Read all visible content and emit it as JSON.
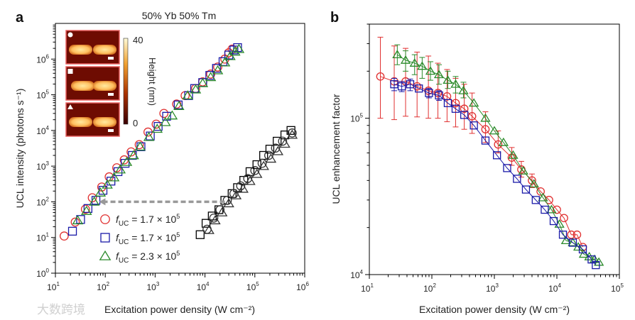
{
  "chart_data": [
    {
      "panel": "a",
      "type": "scatter",
      "title": "50% Yb  50% Tm",
      "xlabel": "Excitation power density (W cm⁻²)",
      "ylabel": "UCL intensity (photons s⁻¹)",
      "xscale": "log",
      "yscale": "log",
      "xlim": [
        10,
        1000000
      ],
      "ylim": [
        1,
        10000000
      ],
      "x_ticks": [
        {
          "base": "10",
          "exp": "1"
        },
        {
          "base": "10",
          "exp": "2"
        },
        {
          "base": "10",
          "exp": "3"
        },
        {
          "base": "10",
          "exp": "4"
        },
        {
          "base": "10",
          "exp": "5"
        },
        {
          "base": "10",
          "exp": "6"
        }
      ],
      "y_ticks": [
        {
          "base": "10",
          "exp": "0"
        },
        {
          "base": "10",
          "exp": "1"
        },
        {
          "base": "10",
          "exp": "2"
        },
        {
          "base": "10",
          "exp": "3"
        },
        {
          "base": "10",
          "exp": "4"
        },
        {
          "base": "10",
          "exp": "5"
        },
        {
          "base": "10",
          "exp": "6"
        }
      ],
      "legend_position": "bottom-center",
      "legend": [
        {
          "marker": "circle",
          "color": "#e03030",
          "f": "f",
          "sub": "UC",
          "value": " = 1.7 × 10",
          "exp": "5"
        },
        {
          "marker": "square",
          "color": "#1a1aa8",
          "f": "f",
          "sub": "UC",
          "value": " = 1.7 × 10",
          "exp": "5"
        },
        {
          "marker": "triangle",
          "color": "#2a8a2a",
          "f": "f",
          "sub": "UC",
          "value": " = 2.3 × 10",
          "exp": "5"
        }
      ],
      "annotation": {
        "type": "arrow",
        "from": [
          25000,
          100
        ],
        "to": [
          75,
          100
        ],
        "style": "dashed gray"
      },
      "inset": {
        "colorbar_label": "Height (nm)",
        "colorbar_max": "40",
        "colorbar_min": "0",
        "panels": [
          "circle",
          "square",
          "triangle"
        ]
      },
      "series": [
        {
          "name": "circle (enhanced)",
          "marker": "circle",
          "color": "#e03030",
          "x": [
            15,
            25,
            40,
            55,
            85,
            120,
            170,
            240,
            330,
            480,
            720,
            1050,
            1500,
            2700,
            4000,
            6500,
            9000,
            13000,
            18000,
            25000,
            30000,
            35000
          ],
          "y": [
            11,
            27,
            62,
            130,
            260,
            500,
            900,
            1500,
            2500,
            4000,
            9000,
            15000,
            30000,
            55000,
            95000,
            150000,
            230000,
            380000,
            600000,
            1000000,
            1500000,
            1900000
          ]
        },
        {
          "name": "square (enhanced)",
          "marker": "square",
          "color": "#1a1aa8",
          "x": [
            22,
            32,
            45,
            65,
            90,
            130,
            180,
            250,
            350,
            520,
            800,
            1150,
            1700,
            2900,
            4700,
            6200,
            9000,
            12500,
            17000,
            23000,
            30000,
            38000,
            45000
          ],
          "y": [
            15,
            32,
            65,
            110,
            210,
            380,
            700,
            1200,
            2000,
            3500,
            7000,
            13000,
            25000,
            52000,
            95000,
            150000,
            220000,
            350000,
            550000,
            850000,
            1300000,
            1800000,
            2100000
          ]
        },
        {
          "name": "triangle (enhanced)",
          "marker": "triangle",
          "color": "#2a8a2a",
          "x": [
            28,
            42,
            60,
            80,
            110,
            150,
            200,
            270,
            370,
            500,
            750,
            1100,
            1600,
            2200,
            3000,
            4500,
            6500,
            9000,
            13000,
            18000,
            25000,
            32000,
            40000,
            48000
          ],
          "y": [
            30,
            55,
            100,
            180,
            300,
            480,
            800,
            1300,
            2000,
            3500,
            6500,
            11000,
            17000,
            26000,
            48000,
            95000,
            140000,
            210000,
            310000,
            480000,
            800000,
            1200000,
            1600000,
            1900000
          ]
        },
        {
          "name": "square (reference)",
          "marker": "square",
          "color": "#000000",
          "x": [
            8000,
            10500,
            14000,
            19000,
            25000,
            35000,
            45000,
            60000,
            80000,
            110000,
            150000,
            200000,
            280000,
            400000,
            530000
          ],
          "y": [
            12,
            25,
            40,
            60,
            110,
            170,
            250,
            400,
            700,
            1100,
            2000,
            3000,
            5000,
            7500,
            10000
          ]
        },
        {
          "name": "circle (reference)",
          "marker": "circle",
          "color": "#333333",
          "x": [
            11000,
            15000,
            20000,
            28000,
            38000,
            52000,
            72000,
            100000,
            140000,
            190000,
            260000,
            360000,
            560000
          ],
          "y": [
            17,
            35,
            60,
            110,
            170,
            280,
            450,
            750,
            1200,
            2000,
            3200,
            5000,
            8500
          ]
        },
        {
          "name": "triangle (reference)",
          "marker": "triangle",
          "color": "#333333",
          "x": [
            12000,
            16000,
            22000,
            30000,
            42000,
            58000,
            80000,
            110000,
            150000,
            210000,
            290000,
            400000,
            560000
          ],
          "y": [
            16,
            30,
            50,
            90,
            150,
            230,
            380,
            600,
            1000,
            1600,
            2600,
            4200,
            7500
          ]
        }
      ]
    },
    {
      "panel": "b",
      "type": "line",
      "xlabel": "Excitation power density (W cm⁻²)",
      "ylabel": "UCL enhancement factor",
      "xscale": "log",
      "yscale": "log",
      "xlim": [
        10,
        100000
      ],
      "ylim": [
        10000,
        400000
      ],
      "x_ticks": [
        {
          "base": "10",
          "exp": "1"
        },
        {
          "base": "10",
          "exp": "2"
        },
        {
          "base": "10",
          "exp": "3"
        },
        {
          "base": "10",
          "exp": "4"
        },
        {
          "base": "10",
          "exp": "5"
        }
      ],
      "y_ticks": [
        {
          "base": "10",
          "exp": "4"
        },
        {
          "base": "10",
          "exp": "5"
        }
      ],
      "series": [
        {
          "name": "circle",
          "marker": "circle",
          "color": "#e03030",
          "x": [
            15,
            25,
            38,
            58,
            88,
            125,
            175,
            240,
            330,
            440,
            720,
            1150,
            1900,
            2700,
            4000,
            5500,
            7500,
            10000,
            13000,
            17000,
            21000,
            26000
          ],
          "y": [
            185000,
            172000,
            172000,
            160000,
            150000,
            145000,
            138000,
            125000,
            115000,
            103000,
            85000,
            68000,
            56000,
            47000,
            40000,
            34000,
            30000,
            26000,
            23000,
            18000,
            18000,
            15000
          ],
          "err_lo": [
            100000,
            98000,
            103000,
            102000,
            100000,
            100000,
            95000,
            88000,
            85000,
            80000,
            70000,
            60000,
            50000,
            42000,
            36000,
            null,
            null,
            null,
            null,
            null,
            null,
            null
          ],
          "err_hi": [
            330000,
            290000,
            280000,
            265000,
            250000,
            225000,
            205000,
            180000,
            165000,
            145000,
            110000,
            83000,
            65000,
            53000,
            44000,
            null,
            null,
            null,
            null,
            null,
            null,
            null
          ]
        },
        {
          "name": "triangle",
          "marker": "triangle",
          "color": "#2a8a2a",
          "x": [
            28,
            38,
            53,
            70,
            95,
            130,
            180,
            240,
            320,
            470,
            720,
            1000,
            1400,
            2000,
            2900,
            4300,
            6000,
            8200,
            11000,
            14000,
            18000,
            22000,
            27000,
            33000,
            40000,
            47000
          ],
          "y": [
            255000,
            235000,
            225000,
            215000,
            200000,
            190000,
            175000,
            165000,
            150000,
            125000,
            100000,
            83000,
            70000,
            58000,
            46000,
            38000,
            31000,
            26000,
            21000,
            16500,
            16000,
            15000,
            13500,
            13000,
            12500,
            12000
          ],
          "err_lo": [
            220000,
            200000,
            190000,
            180000,
            175000,
            165000,
            155000,
            145000,
            135000,
            null,
            null,
            null,
            null,
            null,
            null,
            null,
            null,
            null,
            null,
            null,
            null,
            null,
            null,
            null,
            null,
            null
          ],
          "err_hi": [
            295000,
            270000,
            255000,
            245000,
            230000,
            220000,
            200000,
            185000,
            170000,
            null,
            null,
            null,
            null,
            null,
            null,
            null,
            null,
            null,
            null,
            null,
            null,
            null,
            null,
            null,
            null,
            null
          ]
        },
        {
          "name": "square",
          "marker": "square",
          "color": "#1a1aa8",
          "x": [
            25,
            33,
            45,
            62,
            90,
            130,
            180,
            240,
            330,
            470,
            720,
            1100,
            1600,
            2300,
            3200,
            4600,
            6400,
            8900,
            12500,
            18000,
            26000,
            36000,
            42000
          ],
          "y": [
            165000,
            160000,
            165000,
            155000,
            145000,
            140000,
            125000,
            115000,
            105000,
            90000,
            72000,
            58000,
            48000,
            41000,
            35000,
            30000,
            26000,
            22000,
            18000,
            16000,
            14500,
            12500,
            11500
          ],
          "err_lo": [
            150000,
            148000,
            150000,
            null,
            135000,
            130000,
            null,
            null,
            null,
            null,
            null,
            null,
            null,
            null,
            null,
            null,
            null,
            null,
            null,
            null,
            null,
            null,
            null
          ],
          "err_hi": [
            180000,
            172000,
            178000,
            null,
            155000,
            150000,
            null,
            null,
            null,
            null,
            null,
            null,
            null,
            null,
            null,
            null,
            null,
            null,
            null,
            null,
            null,
            null,
            null
          ]
        }
      ]
    }
  ],
  "panel_labels": {
    "a": "a",
    "b": "b"
  },
  "watermark": "大数跨境"
}
